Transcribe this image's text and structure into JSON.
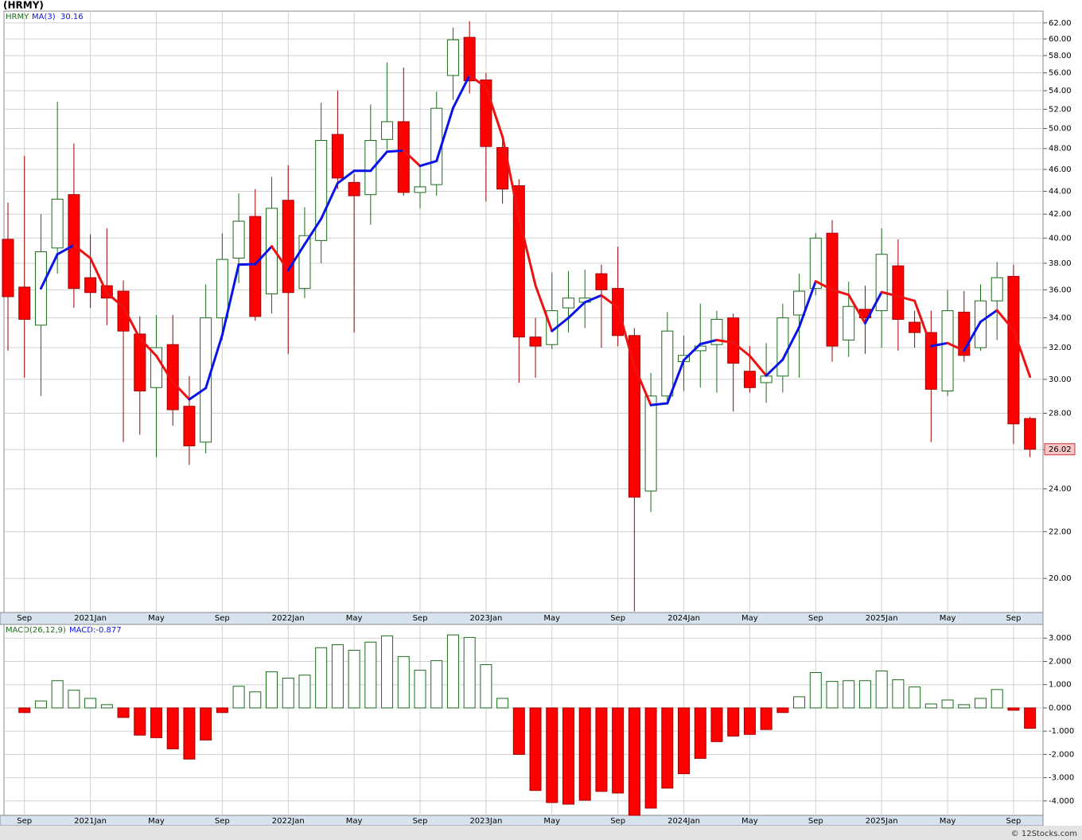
{
  "chart_data": [
    {
      "type": "candlestick",
      "title": "(HRMY)",
      "log_y": true,
      "grid": true,
      "up_color": "#1a6b1a",
      "down_color": "#ff0000",
      "ma_up_color": "#0a14e6",
      "ma_down_color": "#ee1111",
      "source": "© 12Stocks.com",
      "categories": [
        null,
        "Sep",
        null,
        null,
        null,
        "2021Jan",
        null,
        null,
        null,
        "May",
        null,
        null,
        null,
        "Sep",
        null,
        null,
        null,
        "2022Jan",
        null,
        null,
        null,
        "May",
        null,
        null,
        null,
        "Sep",
        null,
        null,
        null,
        "2023Jan",
        null,
        null,
        null,
        "May",
        null,
        null,
        null,
        "Sep",
        null,
        null,
        null,
        "2024Jan",
        null,
        null,
        null,
        "May",
        null,
        null,
        null,
        "Sep",
        null,
        null,
        null,
        "2025Jan",
        null,
        null,
        null,
        "May",
        null,
        null,
        null,
        "Sep",
        null
      ],
      "series": [
        {
          "name": "HRMY",
          "open": [
            39.9,
            36.2,
            33.5,
            39.2,
            43.7,
            36.9,
            36.3,
            35.9,
            32.9,
            29.5,
            32.2,
            28.4,
            26.4,
            34.0,
            38.4,
            41.8,
            35.7,
            43.2,
            36.1,
            39.8,
            49.4,
            44.8,
            43.7,
            48.9,
            50.7,
            43.9,
            44.6,
            55.7,
            60.2,
            55.2,
            48.1,
            44.5,
            32.7,
            32.2,
            34.7,
            35.1,
            37.2,
            36.1,
            32.8,
            23.9,
            29.0,
            31.1,
            31.8,
            32.2,
            34.0,
            30.5,
            29.8,
            30.2,
            34.2,
            36.1,
            40.4,
            32.5,
            34.6,
            34.5,
            37.8,
            33.7,
            33.0,
            29.3,
            34.4,
            32.0,
            35.2,
            37.0,
            27.7
          ],
          "high": [
            43,
            47.3,
            42,
            52.8,
            48.5,
            40.3,
            40.8,
            36.7,
            34.1,
            34.2,
            34.2,
            30.2,
            36.4,
            40.4,
            43.8,
            44.2,
            45.3,
            46.4,
            42.6,
            52.7,
            54.0,
            45.6,
            52.5,
            57.2,
            56.6,
            46.3,
            53.9,
            61.4,
            62.2,
            56.0,
            48.7,
            45.1,
            34.0,
            37.3,
            37.4,
            37.5,
            37.9,
            39.3,
            33.3,
            30.4,
            34.4,
            32.8,
            35.0,
            34.5,
            34.3,
            32.1,
            32.3,
            35.0,
            37.2,
            40.4,
            41.5,
            36.6,
            36.3,
            40.8,
            39.9,
            34.5,
            34.5,
            36.0,
            35.9,
            36.4,
            38.1,
            37.9,
            27.8
          ],
          "low": [
            31.8,
            30.1,
            29.0,
            37.2,
            34.7,
            34.7,
            33.5,
            26.4,
            26.8,
            25.6,
            27.3,
            25.2,
            25.8,
            32.5,
            36.5,
            33.8,
            34.3,
            31.6,
            35.4,
            38.0,
            44.2,
            33.0,
            41.1,
            47.9,
            43.6,
            42.5,
            43.6,
            53.0,
            53.7,
            43.1,
            42.9,
            29.8,
            30.1,
            31.9,
            33.0,
            33.3,
            32.0,
            32.1,
            18.7,
            22.9,
            28.7,
            29.3,
            29.5,
            29.2,
            28.1,
            29.2,
            28.6,
            29.2,
            30.1,
            35.6,
            31.1,
            31.4,
            31.6,
            32.0,
            31.8,
            32.0,
            26.4,
            29.0,
            31.1,
            31.8,
            32.5,
            26.3,
            25.6
          ],
          "close": [
            35.5,
            33.9,
            38.9,
            43.3,
            36.1,
            35.8,
            35.4,
            33.1,
            29.3,
            32.0,
            28.2,
            26.2,
            34.0,
            38.3,
            41.4,
            34.1,
            42.5,
            35.8,
            40.2,
            48.8,
            45.2,
            43.6,
            48.8,
            50.7,
            43.9,
            44.4,
            52.1,
            59.9,
            55.1,
            48.2,
            44.2,
            32.7,
            32.1,
            34.5,
            35.4,
            35.4,
            36.0,
            32.8,
            23.6,
            29.0,
            33.1,
            31.5,
            32.1,
            33.9,
            31.0,
            29.5,
            30.2,
            34.0,
            35.9,
            40.0,
            32.1,
            34.8,
            34.0,
            38.7,
            33.9,
            33.0,
            29.4,
            34.5,
            31.5,
            35.2,
            36.9,
            27.4,
            26.02
          ]
        },
        {
          "name": "MA(3)",
          "values": [
            null,
            null,
            36.1,
            38.7,
            39.43,
            38.4,
            35.77,
            34.77,
            32.6,
            31.47,
            29.83,
            28.8,
            29.47,
            32.83,
            37.9,
            37.93,
            39.33,
            37.47,
            39.5,
            41.6,
            44.73,
            45.87,
            45.87,
            47.7,
            47.8,
            46.33,
            46.8,
            52.13,
            55.7,
            54.4,
            49.17,
            41.7,
            36.33,
            33.1,
            34.0,
            35.1,
            35.6,
            34.73,
            30.8,
            28.47,
            28.57,
            31.2,
            32.23,
            32.5,
            32.33,
            31.47,
            30.23,
            31.23,
            33.37,
            36.63,
            36.0,
            35.63,
            33.63,
            35.83,
            35.53,
            35.2,
            32.1,
            32.3,
            31.8,
            33.73,
            34.53,
            33.17,
            30.16
          ]
        }
      ],
      "ylim": [
        18.66,
        63.5
      ],
      "yticks": [
        {
          "value": 20,
          "label": "20.00"
        },
        {
          "value": 22,
          "label": "22.00"
        },
        {
          "value": 24,
          "label": "24.00"
        },
        {
          "value": 26,
          "label": "26.00"
        },
        {
          "value": 28,
          "label": "28.00"
        },
        {
          "value": 30,
          "label": "30.00"
        },
        {
          "value": 32,
          "label": "32.00"
        },
        {
          "value": 34,
          "label": "34.00"
        },
        {
          "value": 36,
          "label": "36.00"
        },
        {
          "value": 38,
          "label": "38.00"
        },
        {
          "value": 40,
          "label": "40.00"
        },
        {
          "value": 42,
          "label": "42.00"
        },
        {
          "value": 44,
          "label": "44.00"
        },
        {
          "value": 46,
          "label": "46.00"
        },
        {
          "value": 48,
          "label": "48.00"
        },
        {
          "value": 50,
          "label": "50.00"
        },
        {
          "value": 52,
          "label": "52.00"
        },
        {
          "value": 54,
          "label": "54.00"
        },
        {
          "value": 56,
          "label": "56.00"
        },
        {
          "value": 58,
          "label": "58.00"
        },
        {
          "value": 60,
          "label": "60.00"
        },
        {
          "value": 62,
          "label": "62.00"
        }
      ]
    },
    {
      "type": "bar",
      "name": "MACD(26,12,9)",
      "legend_value": "MACD:-0.877",
      "grid": true,
      "up_color": "#1a6b1a",
      "down_color": "#ff0000",
      "values": [
        null,
        -0.2,
        0.3,
        1.17,
        0.76,
        0.41,
        0.14,
        -0.41,
        -1.17,
        -1.28,
        -1.76,
        -2.2,
        -1.38,
        -0.2,
        0.93,
        0.69,
        1.55,
        1.28,
        1.41,
        2.59,
        2.72,
        2.48,
        2.83,
        3.1,
        2.21,
        1.62,
        2.03,
        3.14,
        3.03,
        1.86,
        0.41,
        -2.0,
        -3.55,
        -4.07,
        -4.14,
        -3.97,
        -3.59,
        -3.66,
        -4.62,
        -4.31,
        -3.45,
        -2.83,
        -2.17,
        -1.45,
        -1.21,
        -1.14,
        -0.93,
        -0.2,
        0.48,
        1.52,
        1.14,
        1.17,
        1.17,
        1.59,
        1.21,
        0.9,
        0.17,
        0.34,
        0.14,
        0.41,
        0.79,
        -0.1,
        -0.877
      ],
      "ylim": [
        -4.62,
        3.59
      ],
      "yticks": [
        {
          "value": -4,
          "label": "-4.000"
        },
        {
          "value": -3,
          "label": "-3.000"
        },
        {
          "value": -2,
          "label": "-2.000"
        },
        {
          "value": -1,
          "label": "-1.000"
        },
        {
          "value": 0,
          "label": "0.000"
        },
        {
          "value": 1,
          "label": "1.000"
        },
        {
          "value": 2,
          "label": "2.000"
        },
        {
          "value": 3,
          "label": "3.000"
        }
      ]
    }
  ]
}
